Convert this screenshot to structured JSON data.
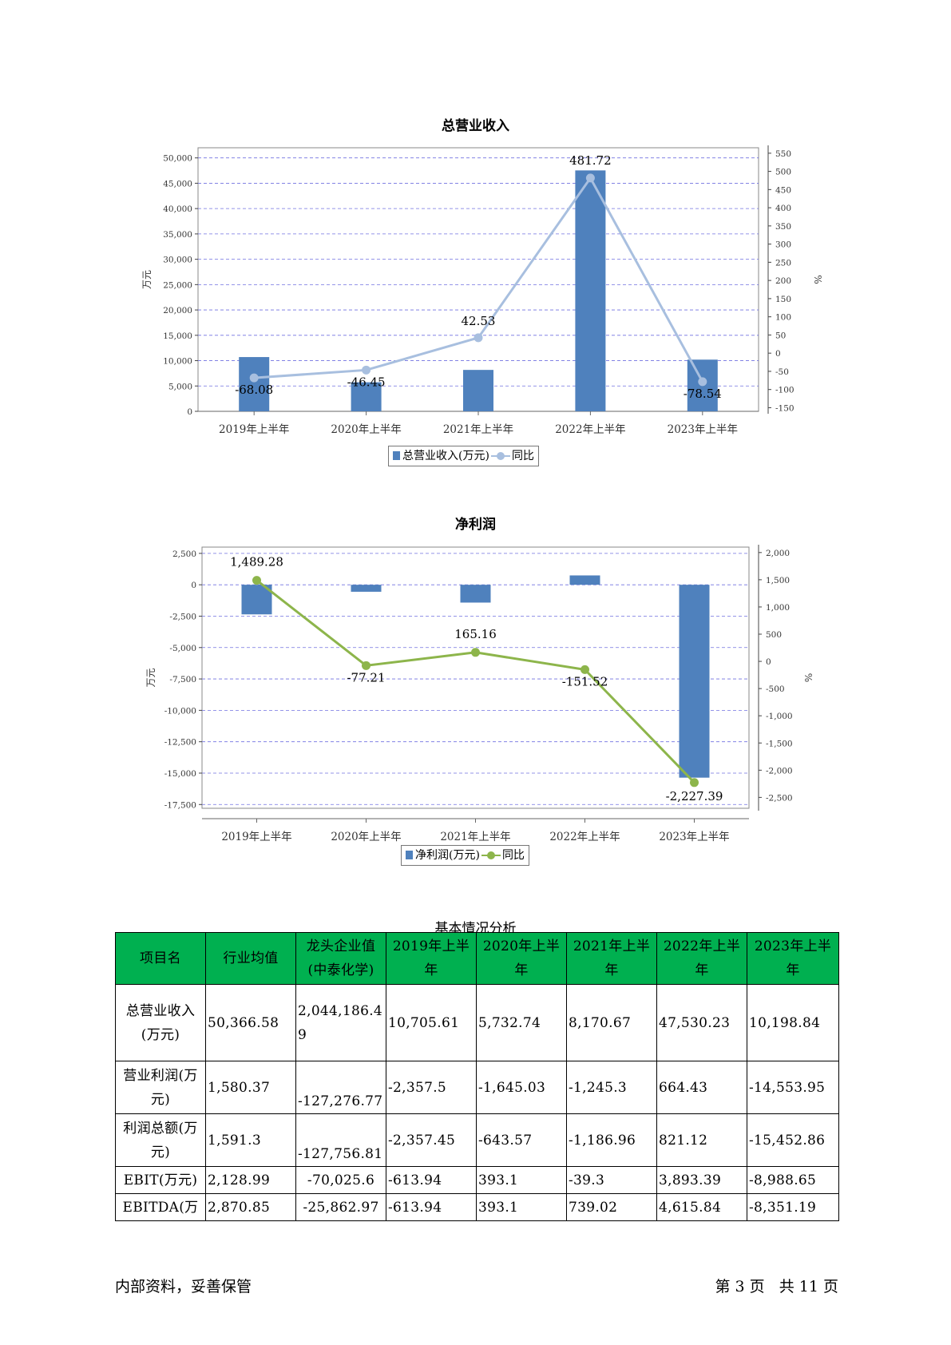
{
  "charts": [
    {
      "title": "总营业收入",
      "chart_data": {
        "type": "bar",
        "categories": [
          "2019年上半年",
          "2020年上半年",
          "2021年上半年",
          "2022年上半年",
          "2023年上半年"
        ],
        "series": [
          {
            "name": "总营业收入(万元)",
            "type": "bar",
            "axis": "left",
            "values": [
              10705.61,
              5732.74,
              8170.67,
              47530.23,
              10198.84
            ],
            "color": "#4f81bd"
          },
          {
            "name": "同比",
            "type": "line",
            "axis": "right",
            "values": [
              -68.08,
              -46.45,
              42.53,
              481.72,
              -78.54
            ],
            "color": "#a8bfdf"
          }
        ],
        "data_labels": [
          "-68.08",
          "-46.45",
          "42.53",
          "481.72",
          "-78.54"
        ],
        "ylabel": "万元",
        "y2label": "%",
        "ylim": [
          0,
          52000
        ],
        "yticks": [
          0,
          5000,
          10000,
          15000,
          20000,
          25000,
          30000,
          35000,
          40000,
          45000,
          50000
        ],
        "y2lim": [
          -160,
          565
        ],
        "y2ticks": [
          -150,
          -100,
          -50,
          0,
          50,
          100,
          150,
          200,
          250,
          300,
          350,
          400,
          450,
          500,
          550
        ],
        "grid": true,
        "legend": "bottom"
      }
    },
    {
      "title": "净利润",
      "chart_data": {
        "type": "bar",
        "categories": [
          "2019年上半年",
          "2020年上半年",
          "2021年上半年",
          "2022年上半年",
          "2023年上半年"
        ],
        "series": [
          {
            "name": "净利润(万元)",
            "type": "bar",
            "axis": "left",
            "values": [
              -2357.5,
              -556.08,
              -1418.98,
              744.58,
              -15361.69
            ],
            "color": "#4f81bd"
          },
          {
            "name": "同比",
            "type": "line",
            "axis": "right",
            "values": [
              1489.28,
              -77.21,
              165.16,
              -151.52,
              -2227.39
            ],
            "color": "#8db54b"
          }
        ],
        "data_labels": [
          "1,489.28",
          "-77.21",
          "165.16",
          "-151.52",
          "-2,227.39"
        ],
        "ylabel": "万元",
        "y2label": "%",
        "ylim": [
          -17800,
          3000
        ],
        "yticks": [
          -17500,
          -15000,
          -12500,
          -10000,
          -7500,
          -5000,
          -2500,
          0,
          2500
        ],
        "y2lim": [
          -2700,
          2100
        ],
        "y2ticks": [
          -2500,
          -2000,
          -1500,
          -1000,
          -500,
          0,
          500,
          1000,
          1500,
          2000
        ],
        "grid": true,
        "legend": "bottom"
      }
    }
  ],
  "table": {
    "caption": "基本情况分析",
    "headers": [
      "项目名",
      "行业均值",
      "龙头企业值(中泰化学)",
      "2019年上半年",
      "2020年上半年",
      "2021年上半年",
      "2022年上半年",
      "2023年上半年"
    ],
    "rows": [
      [
        "总营业收入(万元)",
        "50,366.58",
        "2,044,186.49",
        "10,705.61",
        "5,732.74",
        "8,170.67",
        "47,530.23",
        "10,198.84"
      ],
      [
        "营业利润(万元)",
        "1,580.37",
        "-127,276.77",
        "-2,357.5",
        "-1,645.03",
        "-1,245.3",
        "664.43",
        "-14,553.95"
      ],
      [
        "利润总额(万元)",
        "1,591.3",
        "-127,756.81",
        "-2,357.45",
        "-643.57",
        "-1,186.96",
        "821.12",
        "-15,452.86"
      ],
      [
        "EBIT(万元)",
        "2,128.99",
        "-70,025.6",
        "-613.94",
        "393.1",
        "-39.3",
        "3,893.39",
        "-8,988.65"
      ],
      [
        "EBITDA(万",
        "2,870.85",
        "-25,862.97",
        "-613.94",
        "393.1",
        "739.02",
        "4,615.84",
        "-8,351.19"
      ]
    ]
  },
  "footer": {
    "left": "内部资料，妥善保管",
    "right": "第 3 页   共 11 页"
  }
}
